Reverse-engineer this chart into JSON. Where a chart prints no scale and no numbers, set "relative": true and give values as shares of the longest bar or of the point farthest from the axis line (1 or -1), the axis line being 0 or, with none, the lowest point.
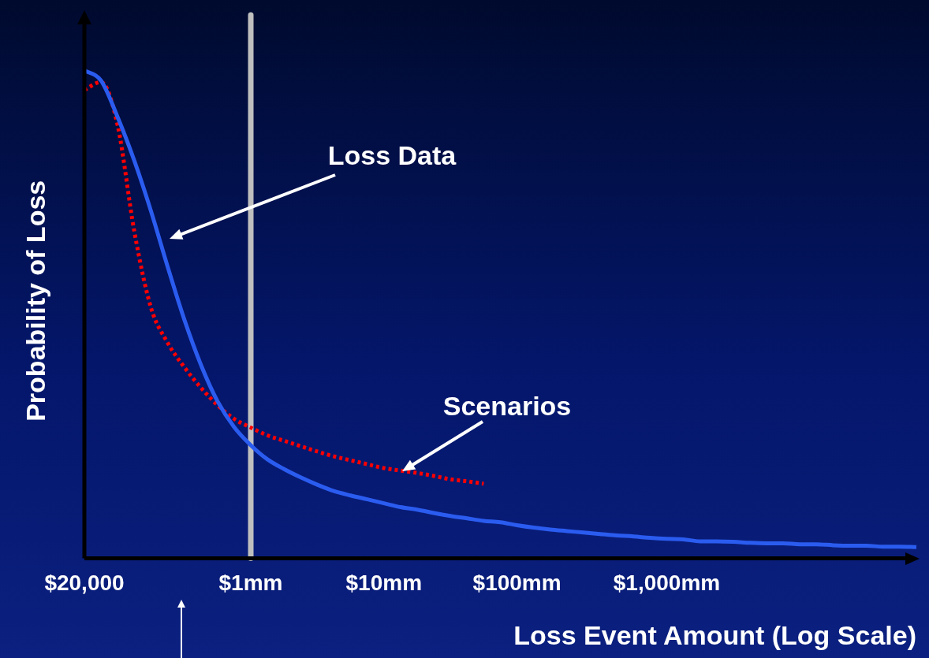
{
  "chart_data": {
    "type": "line",
    "xlabel": "Loss Event Amount (Log Scale)",
    "ylabel": "Probability of Loss",
    "relative": true,
    "grid": false,
    "legend": false,
    "marker": "none",
    "categories": [
      "$20,000",
      null,
      null,
      null,
      null,
      null,
      null,
      null,
      null,
      null,
      "$1mm",
      null,
      null,
      null,
      null,
      null,
      null,
      null,
      "$10mm",
      null,
      null,
      null,
      null,
      null,
      null,
      null,
      "$100mm",
      null,
      null,
      null,
      null,
      null,
      null,
      null,
      null,
      "$1,000mm",
      null,
      null,
      null,
      null,
      null,
      null,
      null,
      null,
      null,
      null,
      null,
      null,
      null,
      null,
      null
    ],
    "ref_lines": [
      {
        "axis": "x",
        "value": "$1mm",
        "label": null,
        "color": "#bfbfbf"
      }
    ],
    "annotations": [
      "Loss Data",
      "Scenarios"
    ],
    "series": [
      {
        "color": "#2b5cf0",
        "line_style": "solid",
        "values": [
          1.0,
          0.979,
          0.904,
          0.815,
          0.712,
          0.598,
          0.49,
          0.397,
          0.322,
          0.269,
          0.232,
          0.203,
          0.183,
          0.166,
          0.151,
          0.138,
          0.129,
          0.121,
          0.113,
          0.105,
          0.1,
          0.093,
          0.087,
          0.082,
          0.077,
          0.074,
          0.068,
          0.063,
          0.059,
          0.056,
          0.053,
          0.05,
          0.047,
          0.045,
          0.042,
          0.04,
          0.039,
          0.035,
          0.035,
          0.034,
          0.032,
          0.031,
          0.031,
          0.029,
          0.029,
          0.027,
          0.026,
          0.026,
          0.024,
          0.024,
          0.023
        ]
      },
      {
        "color": "#ff0000",
        "line_style": "dotted",
        "values": [
          0.96,
          0.976,
          0.887,
          0.67,
          0.514,
          0.442,
          0.392,
          0.35,
          0.314,
          0.286,
          0.268,
          0.252,
          0.241,
          0.23,
          0.219,
          0.209,
          0.201,
          0.193,
          0.185,
          0.18,
          0.175,
          0.169,
          0.162,
          0.158,
          0.153,
          null,
          null,
          null,
          null,
          null,
          null,
          null,
          null,
          null,
          null,
          null,
          null,
          null,
          null,
          null,
          null,
          null,
          null,
          null,
          null,
          null,
          null,
          null,
          null,
          null,
          null
        ]
      }
    ]
  }
}
